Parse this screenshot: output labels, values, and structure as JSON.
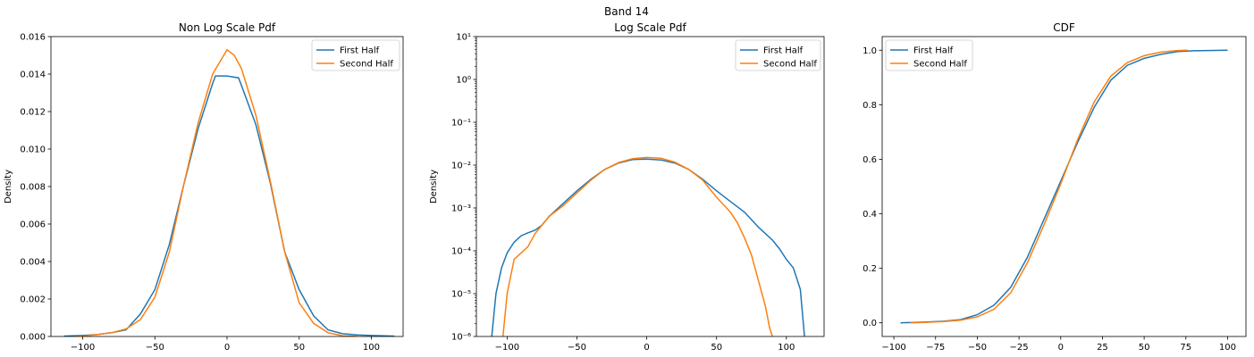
{
  "figure": {
    "title": "Band 14"
  },
  "chart_data": [
    {
      "type": "line",
      "title": "Non Log Scale Pdf",
      "xlabel": "",
      "ylabel": "Density",
      "xlim": [
        -122,
        122
      ],
      "ylim": [
        0,
        0.016
      ],
      "yscale": "linear",
      "xticks": [
        -100,
        -50,
        0,
        50,
        100
      ],
      "xtick_labels": [
        "−100",
        "−50",
        "0",
        "50",
        "100"
      ],
      "yticks": [
        0,
        0.002,
        0.004,
        0.006,
        0.008,
        0.01,
        0.012,
        0.014,
        0.016
      ],
      "ytick_labels": [
        "0.000",
        "0.002",
        "0.004",
        "0.006",
        "0.008",
        "0.010",
        "0.012",
        "0.014",
        "0.016"
      ],
      "legend": {
        "placement": "upper right"
      },
      "series": [
        {
          "name": "First Half",
          "color": "#1f77b4",
          "x": [
            -113,
            -100,
            -90,
            -80,
            -70,
            -60,
            -50,
            -40,
            -30,
            -20,
            -10,
            -8,
            0,
            8,
            10,
            20,
            30,
            40,
            50,
            60,
            70,
            80,
            90,
            100,
            116
          ],
          "y": [
            2e-05,
            5e-05,
            0.0001,
            0.0002,
            0.00035,
            0.0012,
            0.0025,
            0.0049,
            0.0081,
            0.0111,
            0.0135,
            0.0139,
            0.0139,
            0.0138,
            0.0134,
            0.0113,
            0.0082,
            0.0045,
            0.0025,
            0.0011,
            0.00035,
            0.00015,
            8e-05,
            5e-05,
            2e-05
          ]
        },
        {
          "name": "Second Half",
          "color": "#ff7f0e",
          "x": [
            -105,
            -100,
            -90,
            -80,
            -70,
            -60,
            -50,
            -40,
            -30,
            -20,
            -10,
            0,
            5,
            10,
            20,
            30,
            40,
            50,
            60,
            70,
            80,
            90
          ],
          "y": [
            5e-06,
            2e-05,
            0.0001,
            0.0002,
            0.0004,
            0.0009,
            0.0021,
            0.0045,
            0.0081,
            0.0114,
            0.014,
            0.0153,
            0.015,
            0.0143,
            0.0118,
            0.0083,
            0.0045,
            0.0018,
            0.0007,
            0.0002,
            4e-05,
            5e-06
          ]
        }
      ]
    },
    {
      "type": "line",
      "title": "Log Scale Pdf",
      "xlabel": "",
      "ylabel": "Density",
      "xlim": [
        -122,
        127
      ],
      "ylim": [
        -6,
        1
      ],
      "yscale": "log",
      "xticks": [
        -100,
        -50,
        0,
        50,
        100
      ],
      "xtick_labels": [
        "−100",
        "−50",
        "0",
        "50",
        "100"
      ],
      "yticks": [
        -6,
        -5,
        -4,
        -3,
        -2,
        -1,
        0,
        1
      ],
      "ytick_labels": [
        "10⁻⁶",
        "10⁻⁵",
        "10⁻⁴",
        "10⁻³",
        "10⁻²",
        "10⁻¹",
        "10⁰",
        "10¹"
      ],
      "legend": {
        "placement": "upper right"
      },
      "series": [
        {
          "name": "First Half",
          "color": "#1f77b4",
          "x": [
            -111,
            -108,
            -104,
            -100,
            -95,
            -90,
            -85,
            -80,
            -75,
            -70,
            -60,
            -50,
            -40,
            -30,
            -20,
            -10,
            0,
            10,
            20,
            30,
            40,
            50,
            60,
            70,
            80,
            90,
            95,
            100,
            105,
            110,
            113
          ],
          "y": [
            -6,
            -5,
            -4.4,
            -4.05,
            -3.8,
            -3.65,
            -3.58,
            -3.52,
            -3.4,
            -3.2,
            -2.9,
            -2.6,
            -2.33,
            -2.1,
            -1.95,
            -1.87,
            -1.86,
            -1.88,
            -1.95,
            -2.1,
            -2.33,
            -2.6,
            -2.85,
            -3.1,
            -3.45,
            -3.75,
            -3.95,
            -4.2,
            -4.4,
            -4.9,
            -6
          ]
        },
        {
          "name": "Second Half",
          "color": "#ff7f0e",
          "x": [
            -103,
            -100,
            -95,
            -90,
            -85,
            -80,
            -75,
            -70,
            -60,
            -50,
            -40,
            -30,
            -20,
            -10,
            0,
            10,
            20,
            30,
            40,
            50,
            60,
            65,
            70,
            75,
            80,
            85,
            88,
            90
          ],
          "y": [
            -6,
            -5,
            -4.2,
            -4.05,
            -3.9,
            -3.6,
            -3.4,
            -3.2,
            -2.95,
            -2.65,
            -2.35,
            -2.1,
            -1.94,
            -1.85,
            -1.82,
            -1.84,
            -1.93,
            -2.1,
            -2.35,
            -2.75,
            -3.1,
            -3.35,
            -3.7,
            -4.1,
            -4.7,
            -5.3,
            -5.8,
            -6
          ]
        }
      ]
    },
    {
      "type": "line",
      "title": "CDF",
      "xlabel": "",
      "ylabel": "",
      "xlim": [
        -107,
        111
      ],
      "ylim": [
        -0.05,
        1.05
      ],
      "yscale": "linear",
      "xticks": [
        -100,
        -75,
        -50,
        -25,
        0,
        25,
        50,
        75,
        100
      ],
      "xtick_labels": [
        "−100",
        "−75",
        "−50",
        "−25",
        "0",
        "25",
        "50",
        "75",
        "100"
      ],
      "yticks": [
        0,
        0.2,
        0.4,
        0.6,
        0.8,
        1.0
      ],
      "ytick_labels": [
        "0.0",
        "0.2",
        "0.4",
        "0.6",
        "0.8",
        "1.0"
      ],
      "legend": {
        "placement": "upper left"
      },
      "series": [
        {
          "name": "First Half",
          "color": "#1f77b4",
          "x": [
            -96,
            -80,
            -70,
            -60,
            -50,
            -40,
            -30,
            -20,
            -10,
            0,
            10,
            20,
            30,
            40,
            50,
            60,
            70,
            80,
            100
          ],
          "y": [
            0.0,
            0.003,
            0.006,
            0.012,
            0.03,
            0.065,
            0.13,
            0.24,
            0.38,
            0.52,
            0.66,
            0.79,
            0.89,
            0.945,
            0.97,
            0.985,
            0.995,
            0.998,
            1.0
          ]
        },
        {
          "name": "Second Half",
          "color": "#ff7f0e",
          "x": [
            -90,
            -80,
            -70,
            -60,
            -50,
            -40,
            -30,
            -20,
            -10,
            0,
            10,
            20,
            30,
            40,
            50,
            60,
            70,
            76
          ],
          "y": [
            0.0,
            0.002,
            0.005,
            0.01,
            0.022,
            0.05,
            0.11,
            0.22,
            0.36,
            0.51,
            0.67,
            0.81,
            0.905,
            0.955,
            0.98,
            0.993,
            0.999,
            1.0
          ]
        }
      ]
    }
  ]
}
